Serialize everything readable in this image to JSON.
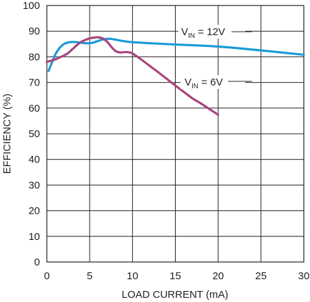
{
  "chart_data": {
    "type": "line",
    "title": "",
    "xlabel": "LOAD CURRENT (mA)",
    "ylabel": "EFFICIENCY (%)",
    "xlim": [
      0,
      30
    ],
    "ylim": [
      0,
      100
    ],
    "x_ticks": [
      "0",
      "5",
      "10",
      "15",
      "20",
      "25",
      "30"
    ],
    "y_ticks": [
      "0",
      "10",
      "20",
      "30",
      "40",
      "50",
      "60",
      "70",
      "80",
      "90",
      "100"
    ],
    "grid": true,
    "series": [
      {
        "name": "V_IN = 12V",
        "label_main": "V",
        "label_sub": "IN",
        "label_rest": " = 12V",
        "color": "#1a9ad6",
        "x": [
          0.2,
          0.5,
          1,
          1.5,
          2,
          2.5,
          3,
          3.5,
          4,
          4.5,
          5,
          5.5,
          6,
          6.5,
          7,
          7.5,
          8,
          9,
          10,
          12,
          15,
          20,
          25,
          30
        ],
        "y": [
          74.5,
          77,
          81,
          83.5,
          85,
          85.6,
          85.8,
          85.7,
          85.5,
          85.3,
          85.3,
          85.6,
          86.2,
          86.7,
          87,
          87,
          86.7,
          86.1,
          85.7,
          85.3,
          84.8,
          84,
          82.5,
          80.8
        ]
      },
      {
        "name": "V_IN = 6V",
        "label_main": "V",
        "label_sub": "IN",
        "label_rest": " = 6V",
        "color": "#a6457c",
        "x": [
          0,
          0.5,
          1,
          1.5,
          2,
          2.5,
          3,
          3.5,
          4,
          4.5,
          5,
          5.5,
          6,
          6.5,
          7,
          7.5,
          8,
          8.5,
          9,
          9.5,
          10,
          11,
          12,
          13,
          14,
          15,
          16,
          17,
          18,
          19,
          20
        ],
        "y": [
          78,
          78.5,
          79,
          79.8,
          80.5,
          81.5,
          83,
          84.5,
          85.8,
          86.6,
          87.2,
          87.5,
          87.6,
          87.2,
          86,
          84,
          82.3,
          81.7,
          81.8,
          81.8,
          81.3,
          79,
          76.5,
          74,
          71.4,
          68.8,
          66.3,
          63.8,
          61.8,
          59.6,
          57.4
        ]
      }
    ]
  }
}
